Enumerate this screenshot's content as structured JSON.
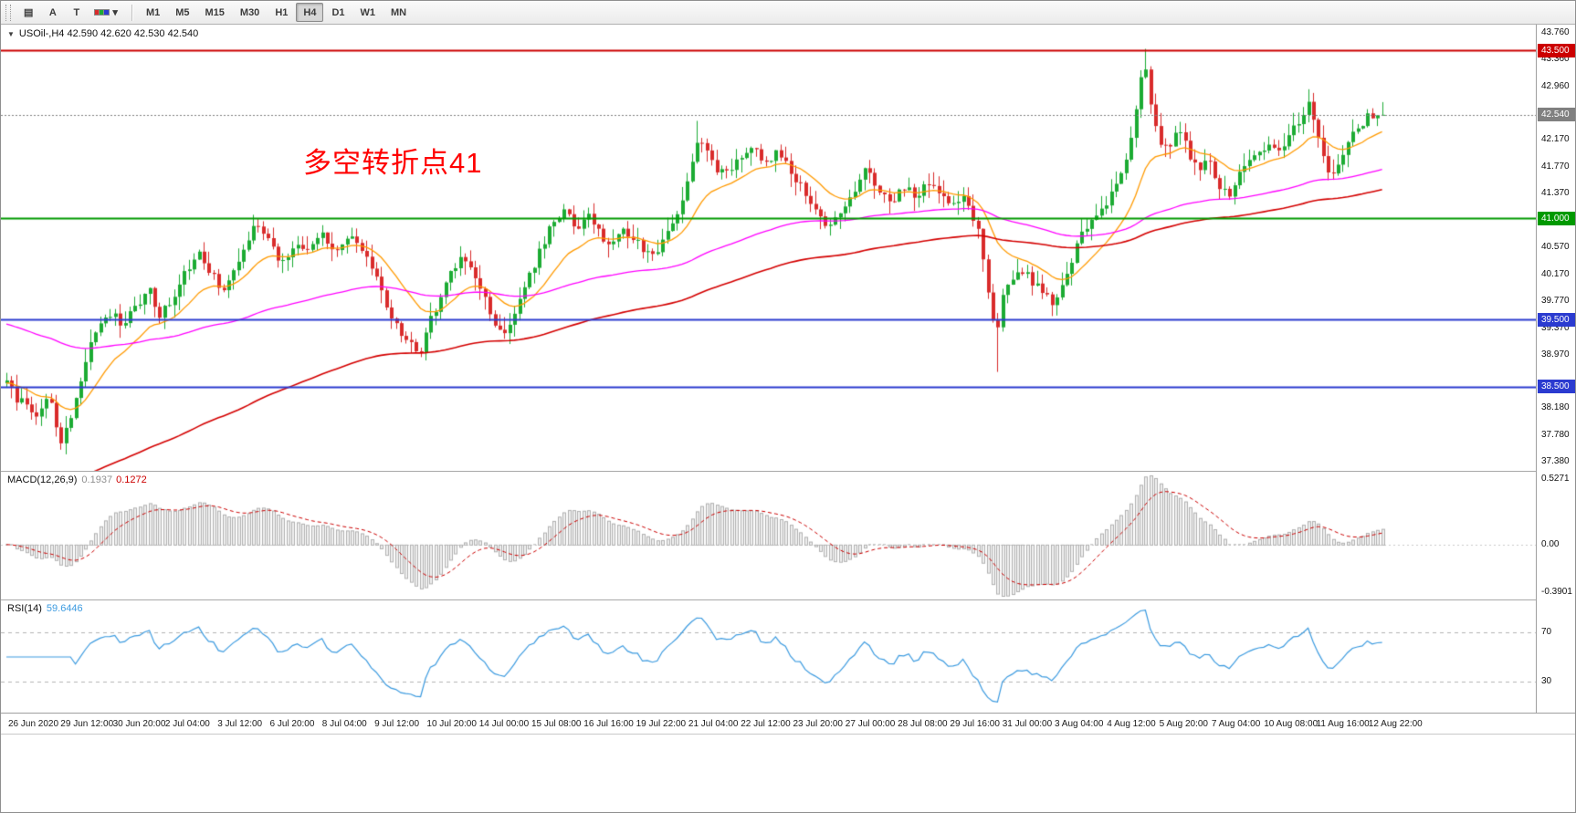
{
  "colors": {
    "bull": "#1cab33",
    "bear": "#d92b2b",
    "ma_fast": "#ff9a00",
    "ma_mid": "#ff00ff",
    "ma_slow": "#d40000",
    "hline_red": "#cc0000",
    "hline_green": "#009900",
    "hline_blue": "#2b3bd0",
    "current_price": "#808080",
    "macd_hist_fill": "#f0f0f0",
    "macd_hist_stroke": "#b0b0b0",
    "macd_signal": "#cc0000",
    "rsi_line": "#3c9be0",
    "annotation": "#ff0000"
  },
  "toolbar": {
    "tools": [
      {
        "name": "chart-window-icon",
        "glyph": "▤"
      },
      {
        "name": "text-label-tool-a",
        "glyph": "A"
      },
      {
        "name": "text-label-tool-t",
        "glyph": "T"
      },
      {
        "name": "colors-dropdown",
        "glyph": "▾",
        "swatches": [
          "#d92b2b",
          "#1cab33",
          "#2b3bd0"
        ]
      }
    ],
    "timeframes": [
      {
        "label": "M1"
      },
      {
        "label": "M5"
      },
      {
        "label": "M15"
      },
      {
        "label": "M30"
      },
      {
        "label": "H1"
      },
      {
        "label": "H4",
        "active": true
      },
      {
        "label": "D1"
      },
      {
        "label": "W1"
      },
      {
        "label": "MN"
      }
    ]
  },
  "chart": {
    "title_text": "USOil-,H4 42.590 42.620 42.530 42.540",
    "symbol": "USOil-",
    "period": "H4",
    "ohlc_readout": {
      "open": "42.590",
      "high": "42.620",
      "low": "42.530",
      "close": "42.540"
    },
    "annotation": {
      "text": "多空转折点41"
    }
  },
  "indicators": {
    "macd": {
      "label": "MACD(12,26,9)",
      "value_main": "0.1937",
      "value_signal": "0.1272",
      "scale_top": "0.5271",
      "scale_zero": "0.00",
      "scale_bottom": "-0.3901",
      "params": {
        "fast": 12,
        "slow": 26,
        "signal": 9
      }
    },
    "rsi": {
      "label": "RSI(14)",
      "value": "59.6446",
      "period": 14,
      "levels": [
        {
          "value": 70,
          "label": "70"
        },
        {
          "value": 30,
          "label": "30"
        }
      ]
    }
  },
  "chart_data": {
    "type": "candlestick",
    "symbol": "USOil-",
    "timeframe": "H4",
    "bars": 280,
    "last_price": 42.54,
    "y_axis": {
      "min": 37.25,
      "max": 43.88,
      "ticks": [
        "43.760",
        "43.360",
        "42.960",
        "42.170",
        "41.770",
        "41.370",
        "40.970",
        "40.570",
        "40.170",
        "39.770",
        "39.370",
        "38.970",
        "38.180",
        "37.780",
        "37.380"
      ]
    },
    "price_levels": [
      {
        "price": 43.5,
        "label": "43.500",
        "color": "#cc0000",
        "style": "solid",
        "width": 2
      },
      {
        "price": 41.0,
        "label": "41.000",
        "color": "#009900",
        "style": "solid",
        "width": 2
      },
      {
        "price": 39.5,
        "label": "39.500",
        "color": "#2b3bd0",
        "style": "solid",
        "width": 2
      },
      {
        "price": 38.5,
        "label": "38.500",
        "color": "#2b3bd0",
        "style": "solid",
        "width": 2
      },
      {
        "price": 42.54,
        "label": "42.540",
        "color": "#808080",
        "style": "dotted",
        "width": 1,
        "role": "current"
      }
    ],
    "price_path": [
      [
        0.0,
        38.55
      ],
      [
        0.008,
        38.3
      ],
      [
        0.016,
        38.2
      ],
      [
        0.024,
        38.05
      ],
      [
        0.03,
        38.4
      ],
      [
        0.035,
        37.95
      ],
      [
        0.04,
        37.7
      ],
      [
        0.045,
        37.95
      ],
      [
        0.05,
        38.35
      ],
      [
        0.057,
        38.9
      ],
      [
        0.064,
        39.25
      ],
      [
        0.074,
        39.6
      ],
      [
        0.084,
        39.45
      ],
      [
        0.094,
        39.7
      ],
      [
        0.104,
        39.9
      ],
      [
        0.112,
        39.55
      ],
      [
        0.12,
        39.8
      ],
      [
        0.13,
        40.2
      ],
      [
        0.14,
        40.45
      ],
      [
        0.15,
        40.15
      ],
      [
        0.158,
        39.9
      ],
      [
        0.168,
        40.35
      ],
      [
        0.178,
        40.8
      ],
      [
        0.184,
        40.9
      ],
      [
        0.192,
        40.55
      ],
      [
        0.2,
        40.35
      ],
      [
        0.21,
        40.65
      ],
      [
        0.22,
        40.55
      ],
      [
        0.23,
        40.75
      ],
      [
        0.24,
        40.5
      ],
      [
        0.25,
        40.68
      ],
      [
        0.26,
        40.55
      ],
      [
        0.268,
        40.15
      ],
      [
        0.276,
        39.65
      ],
      [
        0.286,
        39.3
      ],
      [
        0.294,
        39.1
      ],
      [
        0.3,
        39.0
      ],
      [
        0.308,
        39.5
      ],
      [
        0.318,
        39.95
      ],
      [
        0.328,
        40.4
      ],
      [
        0.338,
        40.28
      ],
      [
        0.346,
        39.9
      ],
      [
        0.354,
        39.4
      ],
      [
        0.362,
        39.25
      ],
      [
        0.37,
        39.7
      ],
      [
        0.38,
        40.15
      ],
      [
        0.39,
        40.65
      ],
      [
        0.398,
        41.0
      ],
      [
        0.406,
        41.1
      ],
      [
        0.414,
        40.85
      ],
      [
        0.422,
        41.05
      ],
      [
        0.43,
        40.8
      ],
      [
        0.438,
        40.55
      ],
      [
        0.448,
        40.85
      ],
      [
        0.458,
        40.65
      ],
      [
        0.468,
        40.4
      ],
      [
        0.478,
        40.65
      ],
      [
        0.488,
        41.1
      ],
      [
        0.497,
        41.7
      ],
      [
        0.503,
        42.2
      ],
      [
        0.509,
        42.0
      ],
      [
        0.516,
        41.7
      ],
      [
        0.524,
        41.65
      ],
      [
        0.534,
        41.95
      ],
      [
        0.542,
        42.05
      ],
      [
        0.552,
        41.8
      ],
      [
        0.56,
        42.0
      ],
      [
        0.568,
        41.75
      ],
      [
        0.578,
        41.45
      ],
      [
        0.588,
        41.1
      ],
      [
        0.598,
        40.85
      ],
      [
        0.608,
        41.15
      ],
      [
        0.616,
        41.4
      ],
      [
        0.624,
        41.75
      ],
      [
        0.632,
        41.45
      ],
      [
        0.642,
        41.2
      ],
      [
        0.652,
        41.48
      ],
      [
        0.66,
        41.3
      ],
      [
        0.668,
        41.52
      ],
      [
        0.676,
        41.38
      ],
      [
        0.686,
        41.25
      ],
      [
        0.696,
        41.32
      ],
      [
        0.702,
        41.05
      ],
      [
        0.707,
        40.75
      ],
      [
        0.712,
        40.05
      ],
      [
        0.716,
        39.55
      ],
      [
        0.719,
        39.1
      ],
      [
        0.723,
        39.75
      ],
      [
        0.728,
        40.0
      ],
      [
        0.736,
        40.25
      ],
      [
        0.744,
        40.1
      ],
      [
        0.752,
        39.95
      ],
      [
        0.76,
        39.7
      ],
      [
        0.768,
        40.05
      ],
      [
        0.777,
        40.55
      ],
      [
        0.786,
        40.95
      ],
      [
        0.796,
        41.15
      ],
      [
        0.806,
        41.45
      ],
      [
        0.814,
        41.85
      ],
      [
        0.819,
        42.3
      ],
      [
        0.823,
        43.0
      ],
      [
        0.827,
        43.4
      ],
      [
        0.83,
        42.95
      ],
      [
        0.834,
        42.4
      ],
      [
        0.838,
        42.1
      ],
      [
        0.845,
        42.05
      ],
      [
        0.852,
        42.3
      ],
      [
        0.858,
        42.05
      ],
      [
        0.865,
        41.72
      ],
      [
        0.872,
        41.92
      ],
      [
        0.88,
        41.55
      ],
      [
        0.888,
        41.32
      ],
      [
        0.896,
        41.68
      ],
      [
        0.903,
        41.85
      ],
      [
        0.911,
        42.0
      ],
      [
        0.918,
        42.15
      ],
      [
        0.925,
        41.98
      ],
      [
        0.932,
        42.22
      ],
      [
        0.94,
        42.45
      ],
      [
        0.946,
        42.7
      ],
      [
        0.951,
        42.35
      ],
      [
        0.957,
        41.95
      ],
      [
        0.962,
        41.6
      ],
      [
        0.969,
        41.9
      ],
      [
        0.977,
        42.18
      ],
      [
        0.985,
        42.42
      ],
      [
        0.992,
        42.55
      ],
      [
        1.0,
        42.54
      ]
    ],
    "extremes": [
      {
        "frac": 0.04,
        "low": 37.62
      },
      {
        "frac": 0.184,
        "high": 40.97
      },
      {
        "frac": 0.503,
        "high": 42.45
      },
      {
        "frac": 0.719,
        "low": 38.72
      },
      {
        "frac": 0.827,
        "high": 43.52
      },
      {
        "frac": 0.946,
        "high": 42.92
      }
    ],
    "moving_averages": [
      {
        "name": "ma-fast-orange",
        "period": 16,
        "seed": 38.55,
        "color_key": "ma_fast",
        "width": 1.3
      },
      {
        "name": "ma-mid-magenta",
        "period": 90,
        "seed": 39.45,
        "color_key": "ma_mid",
        "width": 1.3
      },
      {
        "name": "ma-slow-red",
        "period": 140,
        "seed": 36.9,
        "color_key": "ma_slow",
        "width": 1.6
      }
    ],
    "x_axis_labels": [
      "26 Jun 2020",
      "29 Jun 12:00",
      "30 Jun 20:00",
      "2 Jul 04:00",
      "3 Jul 12:00",
      "6 Jul 20:00",
      "8 Jul 04:00",
      "9 Jul 12:00",
      "10 Jul 20:00",
      "14 Jul 00:00",
      "15 Jul 08:00",
      "16 Jul 16:00",
      "19 Jul 22:00",
      "21 Jul 04:00",
      "22 Jul 12:00",
      "23 Jul 20:00",
      "27 Jul 00:00",
      "28 Jul 08:00",
      "29 Jul 16:00",
      "31 Jul 00:00",
      "3 Aug 04:00",
      "4 Aug 12:00",
      "5 Aug 20:00",
      "7 Aug 04:00",
      "10 Aug 08:00",
      "11 Aug 16:00",
      "12 Aug 22:00"
    ]
  }
}
